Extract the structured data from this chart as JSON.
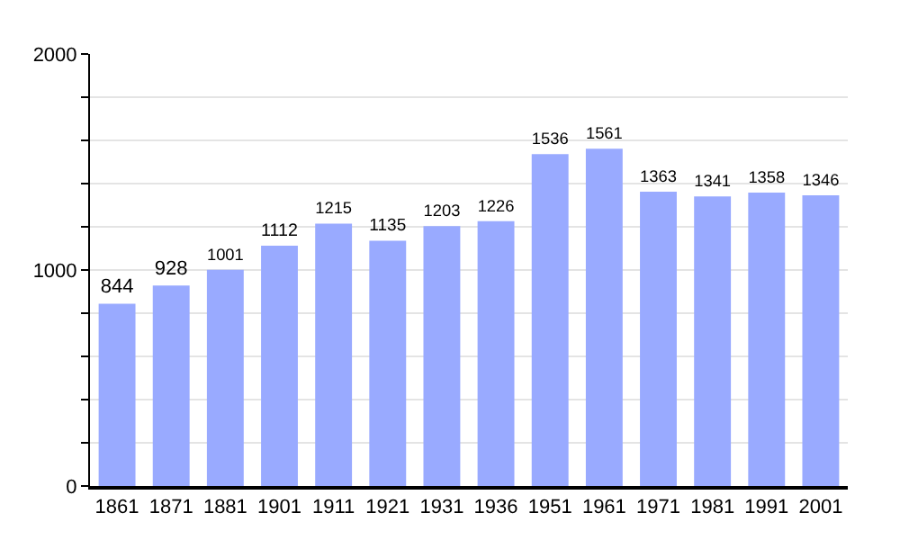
{
  "chart_data": {
    "type": "bar",
    "categories": [
      "1861",
      "1871",
      "1881",
      "1901",
      "1911",
      "1921",
      "1931",
      "1936",
      "1951",
      "1961",
      "1971",
      "1981",
      "1991",
      "2001"
    ],
    "values": [
      844,
      928,
      1001,
      1112,
      1215,
      1135,
      1203,
      1226,
      1536,
      1561,
      1363,
      1341,
      1358,
      1346
    ],
    "color": "#99aaff",
    "ylim": [
      0,
      2000
    ],
    "yticks": [
      0,
      {
        "value": 200,
        "label": null
      },
      {
        "value": 400,
        "label": null
      },
      {
        "value": 600,
        "label": null
      },
      {
        "value": 800,
        "label": null
      },
      1000,
      {
        "value": 1200,
        "label": null
      },
      {
        "value": 1400,
        "label": null
      },
      {
        "value": 1600,
        "label": null
      },
      {
        "value": 1800,
        "label": null
      },
      2000
    ],
    "grid": "y",
    "data_labels": true
  }
}
